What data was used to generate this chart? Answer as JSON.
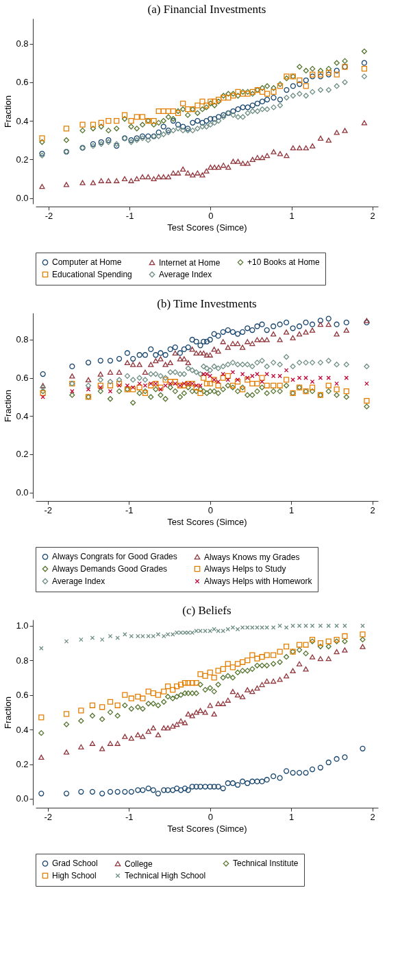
{
  "chart_data": [
    {
      "type": "scatter",
      "title": "(a) Financial Investments",
      "xlabel": "Test Scores (Simce)",
      "ylabel": "Fraction",
      "legend": "bottom",
      "xlim": [
        -2.16,
        2.07
      ],
      "xticks": [
        -2,
        -1,
        0,
        1,
        2
      ],
      "ylim": [
        -0.03,
        0.93
      ],
      "yticks": [
        {
          "value": 0,
          "label": "0.0"
        },
        {
          "value": 0.2,
          "label": "0.2"
        },
        {
          "value": 0.4,
          "label": "0.4"
        },
        {
          "value": 0.6,
          "label": "0.6"
        },
        {
          "value": 0.8,
          "label": "0.8"
        }
      ],
      "x": [
        -2.08,
        -1.78,
        -1.58,
        -1.45,
        -1.35,
        -1.26,
        -1.16,
        -1.06,
        -0.98,
        -0.91,
        -0.84,
        -0.77,
        -0.7,
        -0.64,
        -0.58,
        -0.52,
        -0.46,
        -0.4,
        -0.34,
        -0.28,
        -0.22,
        -0.16,
        -0.1,
        -0.05,
        0,
        0.05,
        0.1,
        0.16,
        0.22,
        0.28,
        0.34,
        0.4,
        0.46,
        0.52,
        0.58,
        0.64,
        0.7,
        0.78,
        0.86,
        0.94,
        1.02,
        1.1,
        1.18,
        1.26,
        1.36,
        1.46,
        1.56,
        1.66,
        1.9
      ],
      "series": [
        {
          "name": "Computer at Home",
          "color": "#1a476f",
          "marker": "circle",
          "values": [
            0.23,
            0.24,
            0.26,
            0.28,
            0.29,
            0.3,
            0.27,
            0.31,
            0.3,
            0.31,
            0.32,
            0.32,
            0.32,
            0.34,
            0.37,
            0.35,
            0.4,
            0.38,
            0.37,
            0.36,
            0.39,
            0.4,
            0.39,
            0.4,
            0.41,
            0.41,
            0.42,
            0.43,
            0.44,
            0.45,
            0.46,
            0.47,
            0.47,
            0.48,
            0.49,
            0.5,
            0.51,
            0.52,
            0.51,
            0.56,
            0.58,
            0.59,
            0.61,
            0.63,
            0.63,
            0.64,
            0.66,
            0.68,
            0.7
          ]
        },
        {
          "name": "Internet at Home",
          "color": "#90353b",
          "marker": "triangle",
          "values": [
            0.06,
            0.07,
            0.08,
            0.08,
            0.09,
            0.09,
            0.09,
            0.1,
            0.09,
            0.1,
            0.11,
            0.11,
            0.1,
            0.11,
            0.11,
            0.11,
            0.13,
            0.13,
            0.15,
            0.13,
            0.12,
            0.13,
            0.12,
            0.14,
            0.16,
            0.16,
            0.16,
            0.17,
            0.16,
            0.19,
            0.19,
            0.18,
            0.18,
            0.2,
            0.21,
            0.21,
            0.22,
            0.24,
            0.23,
            0.22,
            0.26,
            0.26,
            0.26,
            0.27,
            0.31,
            0.3,
            0.34,
            0.35,
            0.39
          ]
        },
        {
          "name": "+10 Books at Home",
          "color": "#55752f",
          "marker": "diamond",
          "values": [
            0.29,
            0.3,
            0.35,
            0.36,
            0.37,
            0.35,
            0.36,
            0.41,
            0.37,
            0.36,
            0.38,
            0.4,
            0.38,
            0.39,
            0.4,
            0.42,
            0.41,
            0.45,
            0.46,
            0.43,
            0.46,
            0.44,
            0.46,
            0.47,
            0.49,
            0.48,
            0.5,
            0.53,
            0.54,
            0.54,
            0.53,
            0.55,
            0.55,
            0.54,
            0.56,
            0.57,
            0.58,
            0.57,
            0.59,
            0.62,
            0.63,
            0.68,
            0.66,
            0.67,
            0.66,
            0.67,
            0.7,
            0.71,
            0.76
          ]
        },
        {
          "name": "Educational Spending",
          "color": "#e37e00",
          "marker": "square",
          "values": [
            0.31,
            0.36,
            0.38,
            0.38,
            0.39,
            0.4,
            0.4,
            0.43,
            0.4,
            0.42,
            0.42,
            0.4,
            0.4,
            0.45,
            0.45,
            0.45,
            0.45,
            0.44,
            0.49,
            0.46,
            0.46,
            0.48,
            0.5,
            0.48,
            0.5,
            0.5,
            0.51,
            0.52,
            0.52,
            0.53,
            0.55,
            0.54,
            0.54,
            0.55,
            0.56,
            0.55,
            0.54,
            0.55,
            0.58,
            0.63,
            0.63,
            0.61,
            0.58,
            0.64,
            0.64,
            0.65,
            0.64,
            0.68,
            0.67
          ]
        },
        {
          "name": "Average Index",
          "color": "#6e8e84",
          "marker": "diamond",
          "values": [
            0.22,
            0.24,
            0.26,
            0.27,
            0.28,
            0.29,
            0.28,
            0.31,
            0.29,
            0.3,
            0.31,
            0.3,
            0.32,
            0.32,
            0.33,
            0.34,
            0.35,
            0.36,
            0.35,
            0.35,
            0.35,
            0.36,
            0.37,
            0.37,
            0.38,
            0.39,
            0.4,
            0.42,
            0.44,
            0.43,
            0.42,
            0.42,
            0.44,
            0.45,
            0.45,
            0.46,
            0.46,
            0.47,
            0.48,
            0.52,
            0.53,
            0.54,
            0.53,
            0.55,
            0.56,
            0.56,
            0.58,
            0.6,
            0.63
          ]
        }
      ]
    },
    {
      "type": "scatter",
      "title": "(b) Time Investments",
      "xlabel": "Test Scores (Simce)",
      "ylabel": "Fraction",
      "legend": "bottom",
      "xlim": [
        -2.15,
        2.07
      ],
      "xticks": [
        -2,
        -1,
        0,
        1,
        2
      ],
      "ylim": [
        -0.03,
        0.94
      ],
      "yticks": [
        {
          "value": 0,
          "label": "0.0"
        },
        {
          "value": 0.2,
          "label": "0.2"
        },
        {
          "value": 0.4,
          "label": "0.4"
        },
        {
          "value": 0.6,
          "label": "0.6"
        },
        {
          "value": 0.8,
          "label": "0.8"
        }
      ],
      "x": [
        -2.06,
        -1.7,
        -1.5,
        -1.35,
        -1.23,
        -1.12,
        -1.02,
        -0.95,
        -0.87,
        -0.8,
        -0.73,
        -0.67,
        -0.61,
        -0.55,
        -0.49,
        -0.43,
        -0.37,
        -0.32,
        -0.27,
        -0.22,
        -0.17,
        -0.12,
        -0.08,
        -0.04,
        0,
        0.05,
        0.1,
        0.16,
        0.22,
        0.28,
        0.34,
        0.4,
        0.46,
        0.52,
        0.58,
        0.64,
        0.7,
        0.78,
        0.86,
        0.94,
        1.02,
        1.1,
        1.18,
        1.26,
        1.36,
        1.46,
        1.56,
        1.68,
        1.93
      ],
      "series": [
        {
          "name": "Always Congrats for Good Grades",
          "color": "#1a476f",
          "marker": "circle",
          "values": [
            0.62,
            0.66,
            0.68,
            0.69,
            0.69,
            0.7,
            0.73,
            0.7,
            0.72,
            0.72,
            0.75,
            0.72,
            0.73,
            0.72,
            0.75,
            0.76,
            0.73,
            0.75,
            0.76,
            0.8,
            0.79,
            0.77,
            0.79,
            0.79,
            0.8,
            0.83,
            0.82,
            0.84,
            0.85,
            0.84,
            0.83,
            0.84,
            0.86,
            0.85,
            0.87,
            0.88,
            0.85,
            0.87,
            0.88,
            0.89,
            0.86,
            0.87,
            0.89,
            0.88,
            0.9,
            0.91,
            0.88,
            0.89,
            0.89
          ]
        },
        {
          "name": "Always Knows my Grades",
          "color": "#90353b",
          "marker": "triangle",
          "values": [
            0.56,
            0.61,
            0.59,
            0.62,
            0.63,
            0.63,
            0.68,
            0.67,
            0.67,
            0.63,
            0.67,
            0.69,
            0.7,
            0.67,
            0.68,
            0.73,
            0.7,
            0.7,
            0.68,
            0.75,
            0.73,
            0.73,
            0.73,
            0.72,
            0.72,
            0.75,
            0.74,
            0.79,
            0.76,
            0.78,
            0.78,
            0.76,
            0.79,
            0.78,
            0.8,
            0.8,
            0.8,
            0.83,
            0.8,
            0.84,
            0.81,
            0.83,
            0.84,
            0.85,
            0.88,
            0.88,
            0.83,
            0.85,
            0.9
          ]
        },
        {
          "name": "Always Demands Good Grades",
          "color": "#55752f",
          "marker": "diamond",
          "values": [
            0.53,
            0.51,
            0.5,
            0.53,
            0.49,
            0.53,
            0.54,
            0.47,
            0.52,
            0.53,
            0.5,
            0.54,
            0.51,
            0.49,
            0.55,
            0.53,
            0.5,
            0.52,
            0.55,
            0.53,
            0.53,
            0.54,
            0.53,
            0.52,
            0.53,
            0.53,
            0.52,
            0.54,
            0.56,
            0.55,
            0.53,
            0.55,
            0.51,
            0.51,
            0.53,
            0.55,
            0.52,
            0.53,
            0.53,
            0.56,
            0.52,
            0.55,
            0.53,
            0.53,
            0.51,
            0.53,
            0.51,
            0.5,
            0.45
          ]
        },
        {
          "name": "Always Helps to Study",
          "color": "#e37e00",
          "marker": "square",
          "values": [
            0.52,
            0.57,
            0.5,
            0.56,
            0.56,
            0.57,
            0.54,
            0.54,
            0.55,
            0.52,
            0.56,
            0.57,
            0.55,
            0.59,
            0.58,
            0.58,
            0.56,
            0.56,
            0.57,
            0.57,
            0.55,
            0.52,
            0.6,
            0.57,
            0.57,
            0.59,
            0.56,
            0.6,
            0.61,
            0.56,
            0.58,
            0.54,
            0.59,
            0.57,
            0.57,
            0.6,
            0.56,
            0.56,
            0.56,
            0.59,
            0.52,
            0.55,
            0.53,
            0.55,
            0.51,
            0.56,
            0.54,
            0.53,
            0.48
          ]
        },
        {
          "name": "Average Index",
          "color": "#6e8e84",
          "marker": "diamond",
          "values": [
            0.55,
            0.57,
            0.56,
            0.59,
            0.58,
            0.59,
            0.61,
            0.59,
            0.6,
            0.59,
            0.62,
            0.62,
            0.61,
            0.6,
            0.63,
            0.63,
            0.62,
            0.62,
            0.65,
            0.64,
            0.63,
            0.62,
            0.66,
            0.65,
            0.64,
            0.66,
            0.65,
            0.66,
            0.67,
            0.68,
            0.67,
            0.67,
            0.67,
            0.66,
            0.68,
            0.69,
            0.66,
            0.68,
            0.67,
            0.71,
            0.66,
            0.68,
            0.68,
            0.68,
            0.68,
            0.69,
            0.67,
            0.67,
            0.66
          ]
        },
        {
          "name": "Always Helps with Homework",
          "color": "#c10534",
          "marker": "cross",
          "values": [
            0.5,
            0.53,
            0.54,
            0.55,
            0.53,
            0.56,
            0.56,
            0.55,
            0.57,
            0.56,
            0.57,
            0.57,
            0.54,
            0.56,
            0.57,
            0.57,
            0.56,
            0.57,
            0.57,
            0.57,
            0.56,
            0.56,
            0.62,
            0.62,
            0.61,
            0.59,
            0.58,
            0.62,
            0.59,
            0.63,
            0.59,
            0.62,
            0.6,
            0.61,
            0.62,
            0.58,
            0.62,
            0.61,
            0.61,
            0.64,
            0.59,
            0.6,
            0.6,
            0.58,
            0.6,
            0.6,
            0.57,
            0.6,
            0.57
          ]
        }
      ]
    },
    {
      "type": "scatter",
      "title": "(c) Beliefs",
      "xlabel": "Test Scores (Simce)",
      "ylabel": "Fraction",
      "legend": "bottom",
      "xlim": [
        -2.15,
        2.07
      ],
      "xticks": [
        -2,
        -1,
        0,
        1,
        2
      ],
      "ylim": [
        -0.036,
        1.035
      ],
      "yticks": [
        {
          "value": 0,
          "label": "0.0"
        },
        {
          "value": 0.2,
          "label": "0.2"
        },
        {
          "value": 0.4,
          "label": "0.4"
        },
        {
          "value": 0.6,
          "label": "0.6"
        },
        {
          "value": 0.8,
          "label": "0.8"
        },
        {
          "value": 1,
          "label": "1.0"
        }
      ],
      "x": [
        -2.08,
        -1.77,
        -1.59,
        -1.45,
        -1.33,
        -1.23,
        -1.14,
        -1.05,
        -0.97,
        -0.89,
        -0.83,
        -0.76,
        -0.7,
        -0.64,
        -0.57,
        -0.52,
        -0.46,
        -0.41,
        -0.36,
        -0.31,
        -0.27,
        -0.22,
        -0.17,
        -0.12,
        -0.06,
        0,
        0.05,
        0.1,
        0.16,
        0.22,
        0.28,
        0.34,
        0.4,
        0.46,
        0.52,
        0.58,
        0.64,
        0.7,
        0.78,
        0.86,
        0.94,
        1.02,
        1.1,
        1.18,
        1.26,
        1.36,
        1.46,
        1.56,
        1.66,
        1.88
      ],
      "series": [
        {
          "name": "Grad School",
          "color": "#1a476f",
          "marker": "circle",
          "values": [
            0.03,
            0.03,
            0.04,
            0.04,
            0.03,
            0.04,
            0.04,
            0.04,
            0.04,
            0.05,
            0.05,
            0.06,
            0.05,
            0.03,
            0.05,
            0.05,
            0.05,
            0.06,
            0.05,
            0.06,
            0.05,
            0.07,
            0.07,
            0.07,
            0.07,
            0.07,
            0.07,
            0.07,
            0.06,
            0.09,
            0.09,
            0.08,
            0.1,
            0.09,
            0.1,
            0.1,
            0.1,
            0.11,
            0.13,
            0.12,
            0.16,
            0.15,
            0.15,
            0.15,
            0.17,
            0.18,
            0.21,
            0.23,
            0.24,
            0.29
          ]
        },
        {
          "name": "College",
          "color": "#90353b",
          "marker": "triangle",
          "values": [
            0.24,
            0.27,
            0.3,
            0.32,
            0.29,
            0.32,
            0.32,
            0.36,
            0.35,
            0.37,
            0.36,
            0.39,
            0.41,
            0.37,
            0.41,
            0.41,
            0.42,
            0.43,
            0.45,
            0.44,
            0.49,
            0.48,
            0.5,
            0.51,
            0.5,
            0.54,
            0.49,
            0.55,
            0.55,
            0.57,
            0.62,
            0.6,
            0.59,
            0.63,
            0.62,
            0.64,
            0.66,
            0.68,
            0.68,
            0.69,
            0.71,
            0.74,
            0.78,
            0.75,
            0.82,
            0.81,
            0.81,
            0.85,
            0.86,
            0.88
          ]
        },
        {
          "name": "Technical Institute",
          "color": "#55752f",
          "marker": "diamond",
          "values": [
            0.38,
            0.43,
            0.45,
            0.48,
            0.46,
            0.5,
            0.48,
            0.54,
            0.52,
            0.53,
            0.52,
            0.55,
            0.55,
            0.54,
            0.56,
            0.59,
            0.58,
            0.59,
            0.6,
            0.61,
            0.61,
            0.61,
            0.61,
            0.66,
            0.63,
            0.64,
            0.62,
            0.66,
            0.7,
            0.71,
            0.7,
            0.73,
            0.74,
            0.74,
            0.75,
            0.77,
            0.77,
            0.77,
            0.78,
            0.79,
            0.82,
            0.85,
            0.86,
            0.84,
            0.91,
            0.88,
            0.88,
            0.91,
            0.91,
            0.92
          ]
        },
        {
          "name": "High School",
          "color": "#e37e00",
          "marker": "square",
          "values": [
            0.47,
            0.49,
            0.51,
            0.54,
            0.53,
            0.56,
            0.54,
            0.6,
            0.58,
            0.59,
            0.58,
            0.62,
            0.61,
            0.6,
            0.62,
            0.65,
            0.63,
            0.65,
            0.66,
            0.67,
            0.67,
            0.67,
            0.67,
            0.72,
            0.71,
            0.73,
            0.7,
            0.74,
            0.75,
            0.78,
            0.76,
            0.78,
            0.79,
            0.8,
            0.83,
            0.81,
            0.82,
            0.83,
            0.83,
            0.85,
            0.88,
            0.85,
            0.89,
            0.89,
            0.92,
            0.9,
            0.91,
            0.92,
            0.94,
            0.95
          ]
        },
        {
          "name": "Technical High School",
          "color": "#6e8e84",
          "marker": "cross",
          "values": [
            0.87,
            0.91,
            0.92,
            0.93,
            0.92,
            0.94,
            0.93,
            0.95,
            0.94,
            0.94,
            0.94,
            0.94,
            0.94,
            0.95,
            0.94,
            0.95,
            0.95,
            0.96,
            0.96,
            0.96,
            0.96,
            0.96,
            0.97,
            0.97,
            0.97,
            0.97,
            0.98,
            0.97,
            0.97,
            0.98,
            0.99,
            0.98,
            0.99,
            0.99,
            0.99,
            0.99,
            0.99,
            0.99,
            0.99,
            1.0,
            0.99,
            1.0,
            1.0,
            1.0,
            1.0,
            1.0,
            1.0,
            1.0,
            1.0,
            1.0
          ]
        }
      ]
    }
  ]
}
